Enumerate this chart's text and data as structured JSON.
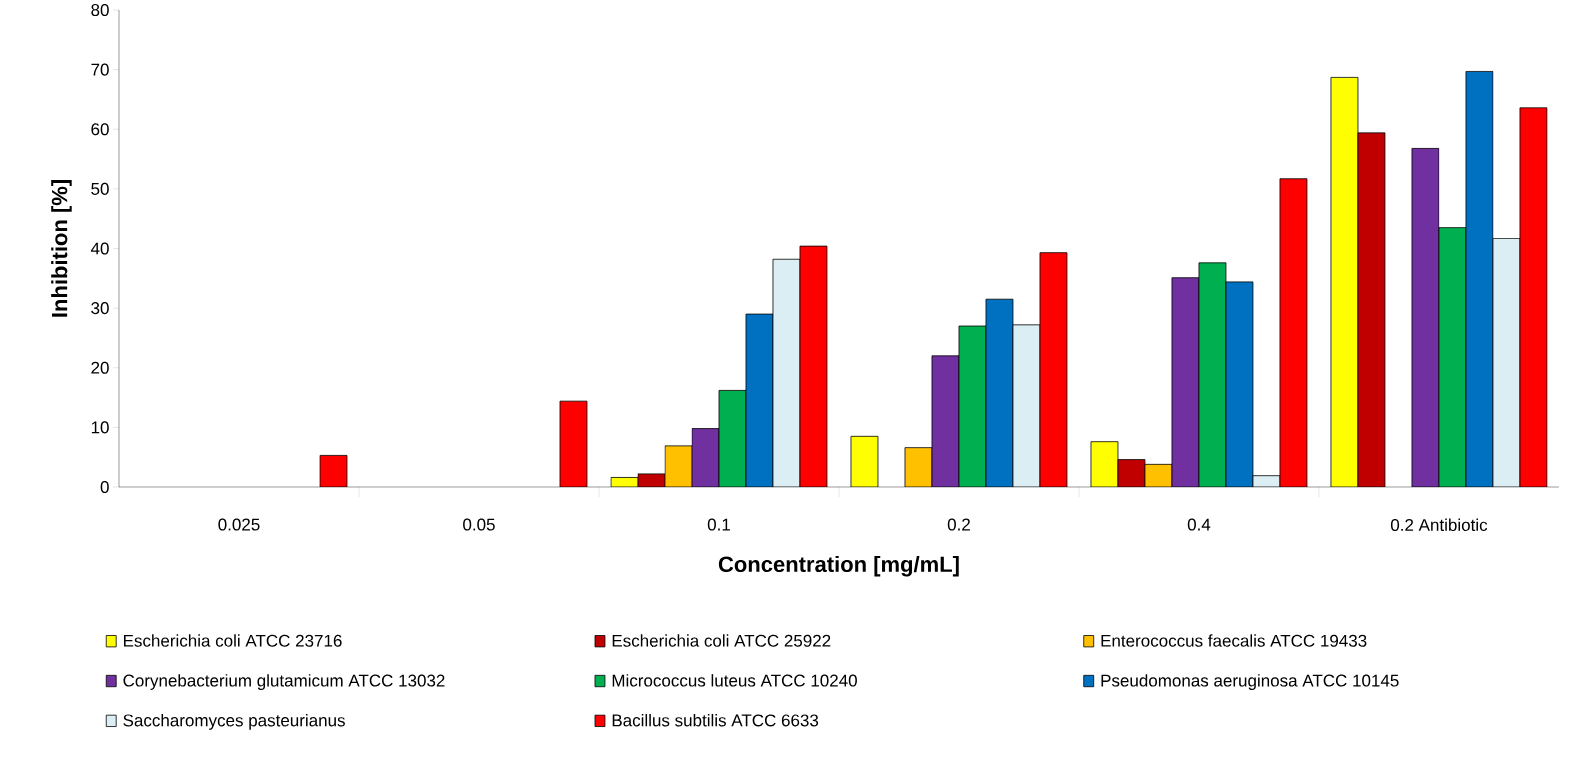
{
  "chart_data": {
    "type": "bar",
    "xlabel": "Concentration [mg/mL]",
    "ylabel": "Inhibition [%]",
    "categories": [
      "0.025",
      "0.05",
      "0.1",
      "0.2",
      "0.4",
      "0.2  Antibiotic"
    ],
    "ylim": [
      0,
      80
    ],
    "yticks": [
      0,
      10,
      20,
      30,
      40,
      50,
      60,
      70,
      80
    ],
    "grid": false,
    "legend": "bottom",
    "series": [
      {
        "name": "Escherichia coli ATCC 23716",
        "color": "#ffff00",
        "values": [
          null,
          null,
          1.6,
          8.5,
          7.6,
          68.7
        ]
      },
      {
        "name": "Escherichia coli ATCC 25922",
        "color": "#c00000",
        "values": [
          null,
          null,
          2.2,
          null,
          4.6,
          59.4
        ]
      },
      {
        "name": "Enterococcus faecalis ATCC 19433",
        "color": "#ffc000",
        "values": [
          null,
          null,
          6.9,
          6.6,
          3.8,
          null
        ]
      },
      {
        "name": "Corynebacterium glutamicum ATCC 13032",
        "color": "#7030a0",
        "values": [
          null,
          null,
          9.8,
          22.0,
          35.1,
          56.8
        ]
      },
      {
        "name": "Micrococcus luteus ATCC 10240",
        "color": "#00b050",
        "values": [
          null,
          null,
          16.2,
          27.0,
          37.6,
          43.5
        ]
      },
      {
        "name": "Pseudomonas aeruginosa ATCC 10145",
        "color": "#0070c0",
        "values": [
          null,
          null,
          29.0,
          31.5,
          34.4,
          69.7
        ]
      },
      {
        "name": "Saccharomyces pasteurianus",
        "color": "#daeef3",
        "values": [
          null,
          null,
          38.2,
          27.2,
          1.9,
          41.7
        ]
      },
      {
        "name": "Bacillus subtilis ATCC 6633",
        "color": "#ff0000",
        "values": [
          5.3,
          14.4,
          40.4,
          39.3,
          51.7,
          63.6
        ]
      }
    ]
  }
}
